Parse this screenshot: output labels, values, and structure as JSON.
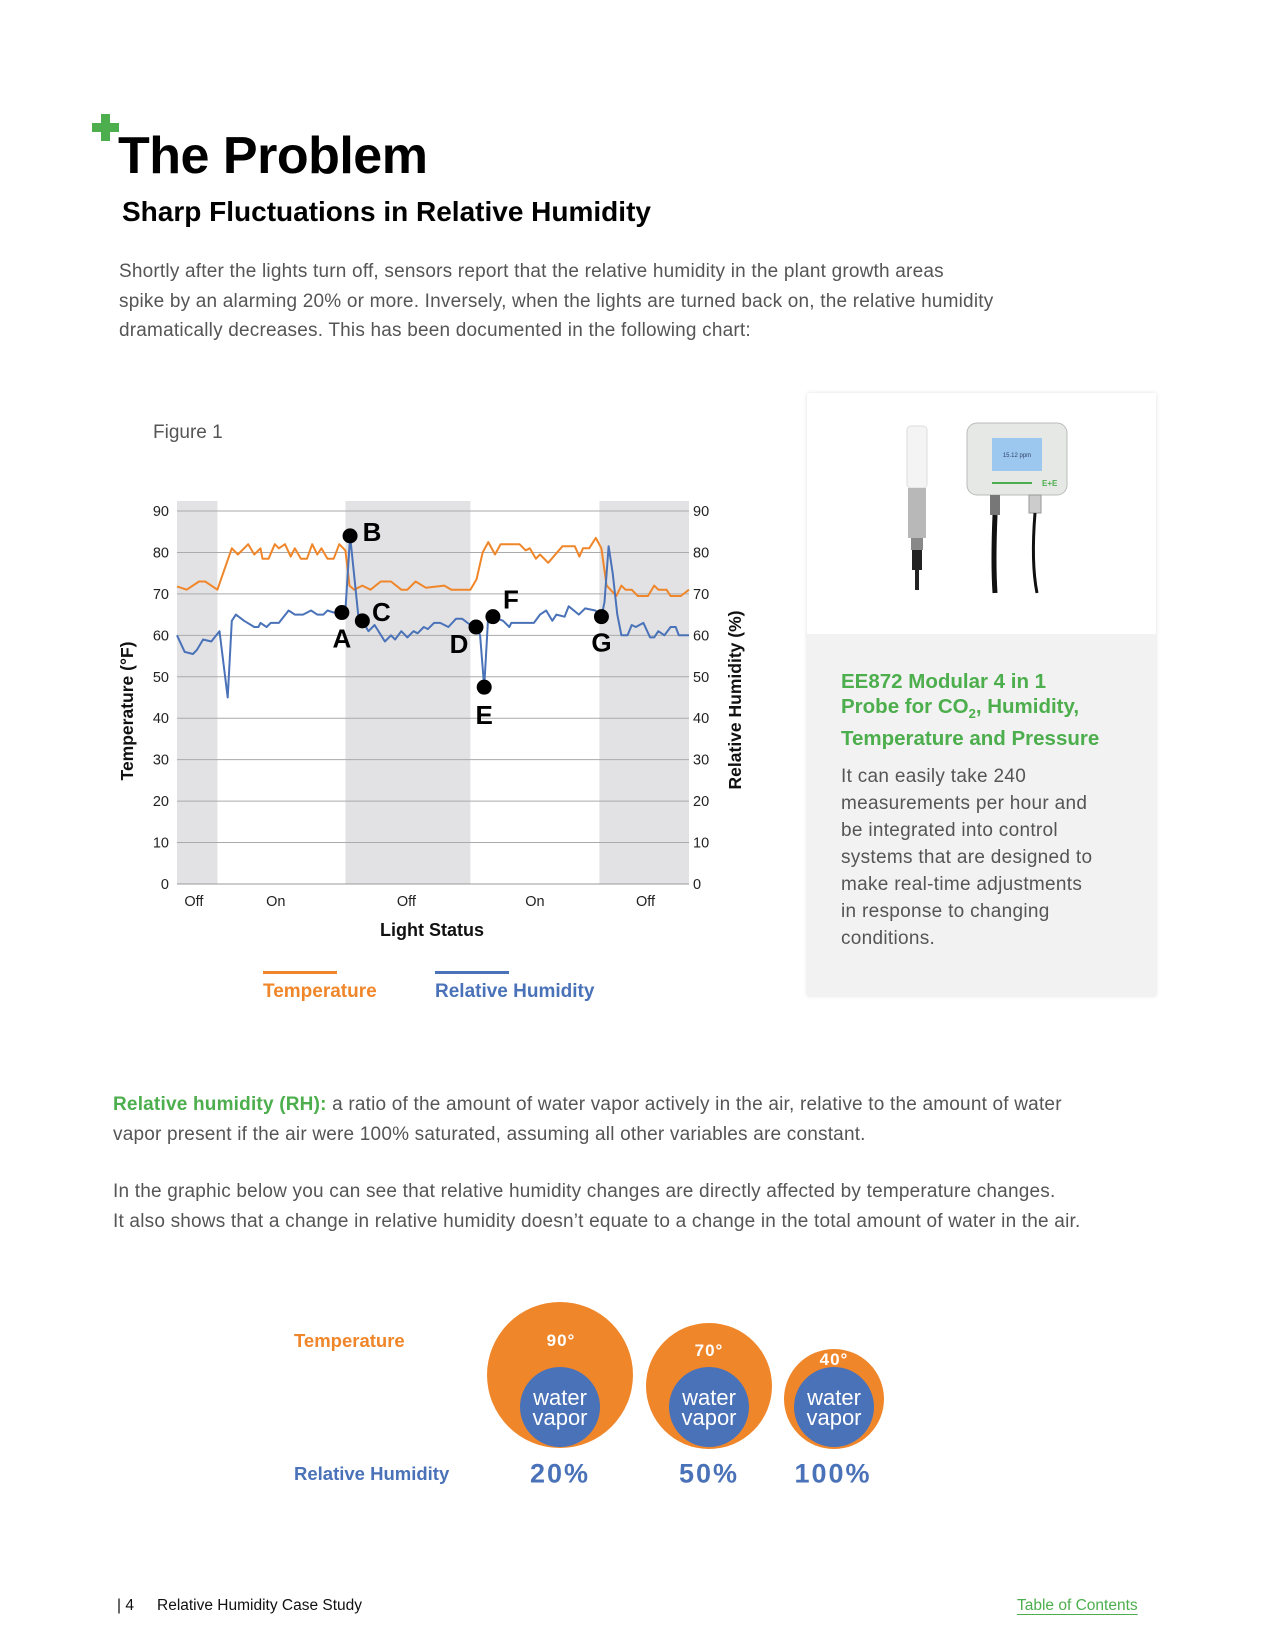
{
  "colors": {
    "green": "#4cae4c",
    "orange": "#f0862a",
    "blue": "#4a72b8",
    "shade": "#e2e2e4"
  },
  "header": {
    "title": "The Problem",
    "subtitle": "Sharp Fluctuations in Relative Humidity",
    "intro_lines": [
      "Shortly after the lights turn off, sensors report that the relative humidity in the plant growth areas",
      "spike by an alarming 20% or more. Inversely, when the lights are turned back on, the relative humidity",
      "dramatically decreases. This has been documented in the following chart:"
    ]
  },
  "figure_label": "Figure 1",
  "chart_data": {
    "type": "line",
    "xlabel": "Light Status",
    "ylabel_left": "Temperature (°F)",
    "ylabel_right": "Relative Humidity (%)",
    "ylim": [
      0,
      90
    ],
    "yticks": [
      0,
      10,
      20,
      30,
      40,
      50,
      60,
      70,
      80,
      90
    ],
    "xlim": [
      0,
      100
    ],
    "grid": true,
    "x_tick_labels": [
      {
        "x": 3.3,
        "label": "Off"
      },
      {
        "x": 19.3,
        "label": "On"
      },
      {
        "x": 44.8,
        "label": "Off"
      },
      {
        "x": 69.9,
        "label": "On"
      },
      {
        "x": 91.5,
        "label": "Off"
      }
    ],
    "lights_off_periods": [
      [
        0,
        7.9
      ],
      [
        32.9,
        57.3
      ],
      [
        82.5,
        100
      ]
    ],
    "series": [
      {
        "name": "Temperature",
        "color": "#f0862a",
        "axis": "left",
        "x": [
          0,
          1.9,
          4.3,
          5.5,
          7.9,
          10.7,
          11.9,
          13.9,
          15.1,
          16.3,
          16.7,
          17.9,
          19.1,
          19.9,
          21.1,
          22.2,
          23.0,
          24.2,
          25.4,
          26.4,
          27.4,
          28.2,
          29.4,
          30.6,
          31.7,
          32.9,
          33.7,
          34.6,
          36.2,
          37.8,
          39.8,
          41.8,
          43.8,
          45.0,
          46.6,
          48.6,
          52.2,
          53.6,
          57.3,
          58.5,
          59.7,
          60.8,
          62.1,
          63.2,
          66.9,
          68.1,
          68.9,
          70.1,
          70.9,
          72.5,
          75.3,
          77.7,
          78.6,
          79.3,
          80.5,
          81.8,
          82.9,
          83.9,
          85.8,
          86.8,
          87.6,
          88.8,
          90.0,
          92.0,
          93.2,
          94.0,
          95.6,
          96.4,
          98.4,
          100
        ],
        "y": [
          71.8,
          71,
          73,
          73,
          71,
          81,
          79.5,
          82,
          79.5,
          81,
          78.5,
          78.5,
          82,
          81,
          82,
          79,
          81,
          78.5,
          78.5,
          82,
          79.5,
          81,
          78.5,
          78.5,
          82,
          80.5,
          72,
          71,
          72,
          71,
          73,
          73,
          71,
          71,
          73,
          71.5,
          72,
          71,
          71,
          73.5,
          80,
          82.5,
          79.5,
          82,
          82,
          80.5,
          81,
          78.5,
          79.5,
          77.5,
          81.5,
          81.5,
          79,
          81,
          81,
          83.5,
          81,
          72,
          69.5,
          72,
          71,
          71,
          69.5,
          69.5,
          72,
          71,
          71,
          69.5,
          69.5,
          71
        ]
      },
      {
        "name": "Relative Humidity",
        "color": "#4a72b8",
        "axis": "right",
        "x": [
          0,
          1.5,
          3.1,
          3.9,
          5.1,
          6.7,
          8.3,
          9.9,
          10.7,
          11.5,
          13.1,
          15.1,
          15.9,
          16.3,
          17.5,
          18.3,
          19.9,
          21.8,
          23.0,
          24.6,
          26.2,
          27.4,
          28.6,
          29.4,
          30.6,
          32.2,
          32.9,
          33.8,
          35.4,
          36.2,
          37.4,
          38.6,
          40.6,
          41.8,
          42.6,
          43.8,
          45.0,
          46.2,
          47.0,
          48.2,
          49.0,
          50.2,
          51.4,
          53.0,
          54.5,
          55.7,
          57.3,
          58.4,
          59.2,
          60.0,
          60.8,
          61.7,
          63.7,
          64.9,
          65.3,
          69.7,
          70.9,
          72.1,
          73.3,
          74.1,
          75.7,
          76.5,
          78.5,
          79.7,
          81.7,
          82.9,
          83.5,
          84.3,
          85.1,
          86.0,
          86.8,
          88.0,
          88.8,
          89.6,
          91.1,
          92.4,
          93.2,
          94.0,
          95.2,
          96.4,
          97.4,
          98.0,
          100
        ],
        "y": [
          60,
          56,
          55.5,
          56.5,
          59,
          58.5,
          61,
          45,
          63.5,
          65,
          63.5,
          62,
          62,
          63,
          62,
          63,
          63,
          66,
          65,
          65,
          66,
          65,
          65,
          66,
          65.5,
          65.5,
          66,
          84,
          65,
          63.5,
          61,
          62.5,
          58.5,
          60,
          59,
          61,
          59.5,
          61,
          60.5,
          62,
          61.5,
          63,
          63,
          62,
          64,
          64,
          62.5,
          62,
          60,
          47.5,
          65,
          64.5,
          63.5,
          62,
          63,
          63,
          65,
          66,
          63.5,
          65,
          64.5,
          67,
          65,
          66.5,
          66,
          64.5,
          68,
          81.5,
          75,
          65,
          60,
          60,
          62.5,
          62,
          63,
          59.5,
          59.5,
          61,
          60,
          62,
          62,
          60,
          60
        ]
      }
    ],
    "annotations": [
      {
        "label": "A",
        "x": 32.2,
        "y": 65.5
      },
      {
        "label": "B",
        "x": 33.8,
        "y": 84
      },
      {
        "label": "C",
        "x": 36.2,
        "y": 63.5
      },
      {
        "label": "D",
        "x": 58.4,
        "y": 62
      },
      {
        "label": "E",
        "x": 60.0,
        "y": 47.5
      },
      {
        "label": "F",
        "x": 61.7,
        "y": 64.5
      },
      {
        "label": "G",
        "x": 82.9,
        "y": 64.5
      }
    ],
    "legend": [
      "Temperature",
      "Relative Humidity"
    ],
    "legend_placement": "bottom"
  },
  "product_card": {
    "title_line1": "EE872 Modular 4 in 1",
    "title_line2_pre": "Probe for CO",
    "title_line2_sub": "2",
    "title_line2_post": ", Humidity,",
    "title_line3": "Temperature and Pressure",
    "body_lines": [
      "It can easily take 240",
      "measurements per hour and",
      "be integrated into control",
      "systems that are designed to",
      "make real-time adjustments",
      "in response to changing",
      "conditions."
    ],
    "image_logo_text": "E+E"
  },
  "definition": {
    "term": "Relative humidity (RH):",
    "line1_rest": " a ratio of the amount of water vapor actively in the air, relative to the amount of water",
    "line2": "vapor present if the air were 100% saturated, assuming all other variables are constant."
  },
  "explanation_lines": [
    "In the graphic below you can see that relative humidity changes are directly affected by temperature changes.",
    "It also shows that a change in relative humidity doesn’t equate to a change in the total amount of water in the air."
  ],
  "bubbles": {
    "temperature_label": "Temperature",
    "rh_label": "Relative Humidity",
    "items": [
      {
        "temperature": "90°",
        "water_line1": "water",
        "water_line2": "vapor",
        "rh": "20%"
      },
      {
        "temperature": "70°",
        "water_line1": "water",
        "water_line2": "vapor",
        "rh": "50%"
      },
      {
        "temperature": "40°",
        "water_line1": "water",
        "water_line2": "vapor",
        "rh": "100%"
      }
    ]
  },
  "footer": {
    "page_number": "| 4",
    "doc_title": "Relative Humidity Case Study",
    "toc_link": "Table of Contents"
  }
}
